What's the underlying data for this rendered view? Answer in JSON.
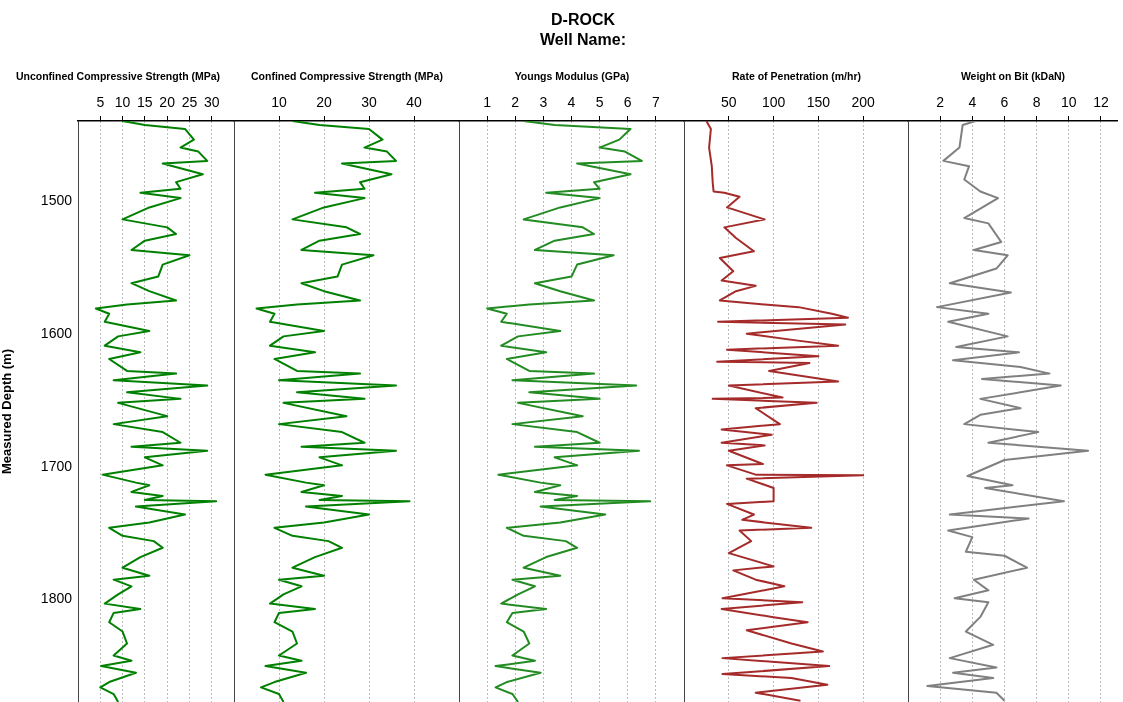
{
  "chart_data": [
    {
      "type": "other",
      "title": "D-ROCK",
      "subtitle": "Well Name:"
    },
    {
      "type": "line",
      "xlabel": "Unconfined Compressive Strength (MPa)",
      "ylabel": "Measured Depth (m)",
      "xlim": [
        0,
        35
      ],
      "xticks": [
        5,
        10,
        15,
        20,
        25,
        30
      ],
      "ylim": [
        1877,
        1440
      ],
      "yticks": [
        1500,
        1600,
        1700,
        1800
      ],
      "grid": "x",
      "series": [
        {
          "color": "#008000",
          "x": [
            10,
            15,
            24,
            26,
            23,
            27,
            29,
            19,
            28,
            22,
            23,
            14,
            23,
            16,
            10,
            20,
            22,
            15,
            12,
            25,
            19,
            18,
            12,
            16,
            22,
            11,
            4,
            7,
            6,
            16,
            9,
            6,
            14,
            7,
            11,
            22,
            8,
            29,
            11,
            23,
            9,
            20,
            8,
            19,
            23,
            12,
            29,
            15,
            19,
            5.5,
            13,
            16,
            12,
            19,
            15,
            31,
            13,
            24,
            16,
            7,
            10,
            17,
            19,
            14,
            10,
            16,
            8,
            12,
            9,
            6,
            14,
            8,
            7,
            10,
            11,
            8,
            12,
            5.2,
            13,
            7,
            5,
            8,
            9
          ],
          "values": [
            1440,
            1443,
            1446,
            1454,
            1460,
            1463,
            1470,
            1472,
            1480,
            1486,
            1491,
            1494,
            1498,
            1505,
            1514,
            1520,
            1525,
            1530,
            1537,
            1541,
            1548,
            1557,
            1562,
            1568,
            1575,
            1578,
            1581,
            1585,
            1591,
            1598,
            1602,
            1609,
            1614,
            1619,
            1628,
            1630,
            1635,
            1639,
            1644,
            1649,
            1652,
            1662,
            1668,
            1674,
            1682,
            1685,
            1688,
            1693,
            1699,
            1706,
            1712,
            1714,
            1719,
            1722,
            1725,
            1726,
            1730,
            1736,
            1742,
            1746,
            1752,
            1756,
            1761,
            1768,
            1776,
            1782,
            1785,
            1790,
            1796,
            1803,
            1807,
            1810,
            1817,
            1824,
            1833,
            1842,
            1846,
            1850,
            1855,
            1862,
            1866,
            1871,
            1877
          ]
        }
      ]
    },
    {
      "type": "line",
      "xlabel": "Confined Compressive Strength (MPa)",
      "xlim": [
        0,
        50
      ],
      "xticks": [
        10,
        20,
        30,
        40
      ],
      "ylim": [
        1877,
        1440
      ],
      "grid": "x",
      "tick_labels": "x",
      "series": [
        {
          "color": "#008000",
          "x": [
            13,
            19,
            30,
            33,
            29,
            34,
            36,
            24,
            35,
            28,
            29,
            18,
            29,
            20,
            13,
            25,
            28,
            19,
            15,
            31,
            24,
            23,
            15,
            20,
            28,
            14,
            5,
            9,
            8,
            20,
            11,
            8,
            18,
            9,
            14,
            28,
            10,
            36,
            14,
            29,
            11,
            25,
            10,
            24,
            29,
            15,
            36,
            19,
            24,
            7,
            16,
            20,
            15,
            24,
            19,
            39,
            16,
            30,
            20,
            9,
            13,
            21,
            24,
            18,
            13,
            20,
            10,
            15,
            11,
            8,
            18,
            10,
            9,
            13,
            14,
            10,
            15,
            7,
            16,
            9,
            6,
            10,
            11
          ],
          "values": [
            1440,
            1443,
            1446,
            1454,
            1460,
            1463,
            1470,
            1472,
            1480,
            1486,
            1491,
            1494,
            1498,
            1505,
            1514,
            1520,
            1525,
            1530,
            1537,
            1541,
            1548,
            1557,
            1562,
            1568,
            1575,
            1578,
            1581,
            1585,
            1591,
            1598,
            1602,
            1609,
            1614,
            1619,
            1628,
            1630,
            1635,
            1639,
            1644,
            1649,
            1652,
            1662,
            1668,
            1674,
            1682,
            1685,
            1688,
            1693,
            1699,
            1706,
            1712,
            1714,
            1719,
            1722,
            1725,
            1726,
            1730,
            1736,
            1742,
            1746,
            1752,
            1756,
            1761,
            1768,
            1776,
            1782,
            1785,
            1790,
            1796,
            1803,
            1807,
            1810,
            1817,
            1824,
            1833,
            1842,
            1846,
            1850,
            1855,
            1862,
            1866,
            1871,
            1877
          ]
        }
      ]
    },
    {
      "type": "line",
      "xlabel": "Youngs Modulus (GPa)",
      "xlim": [
        0,
        8
      ],
      "xticks": [
        1,
        2,
        3,
        4,
        5,
        6,
        7
      ],
      "ylim": [
        1877,
        1440
      ],
      "grid": "x",
      "tick_labels": "x",
      "series": [
        {
          "color": "#228b22",
          "x": [
            2.3,
            3.4,
            6.1,
            5.7,
            5.0,
            5.9,
            6.5,
            4.2,
            6.1,
            4.8,
            5.0,
            3.1,
            5.0,
            3.6,
            2.3,
            4.4,
            4.8,
            3.4,
            2.7,
            5.5,
            4.2,
            4.0,
            2.7,
            3.6,
            4.8,
            2.5,
            1.0,
            1.7,
            1.5,
            3.6,
            2.1,
            1.5,
            3.1,
            1.7,
            2.5,
            4.8,
            1.9,
            6.3,
            2.5,
            5.0,
            2.1,
            4.4,
            1.9,
            4.2,
            5.0,
            2.7,
            6.4,
            3.4,
            4.2,
            1.4,
            2.9,
            3.6,
            2.7,
            4.2,
            3.4,
            6.8,
            2.9,
            5.2,
            3.6,
            1.7,
            2.3,
            3.8,
            4.2,
            3.1,
            2.3,
            3.6,
            1.9,
            2.7,
            2.1,
            1.5,
            3.1,
            1.9,
            1.7,
            2.3,
            2.5,
            1.9,
            2.7,
            1.3,
            2.9,
            1.7,
            1.3,
            1.9,
            2.1
          ],
          "values": [
            1440,
            1443,
            1446,
            1454,
            1460,
            1463,
            1470,
            1472,
            1480,
            1486,
            1491,
            1494,
            1498,
            1505,
            1514,
            1520,
            1525,
            1530,
            1537,
            1541,
            1548,
            1557,
            1562,
            1568,
            1575,
            1578,
            1581,
            1585,
            1591,
            1598,
            1602,
            1609,
            1614,
            1619,
            1628,
            1630,
            1635,
            1639,
            1644,
            1649,
            1652,
            1662,
            1668,
            1674,
            1682,
            1685,
            1688,
            1693,
            1699,
            1706,
            1712,
            1714,
            1719,
            1722,
            1725,
            1726,
            1730,
            1736,
            1742,
            1746,
            1752,
            1756,
            1761,
            1768,
            1776,
            1782,
            1785,
            1790,
            1796,
            1803,
            1807,
            1810,
            1817,
            1824,
            1833,
            1842,
            1846,
            1850,
            1855,
            1862,
            1866,
            1871,
            1877
          ]
        }
      ]
    },
    {
      "type": "line",
      "xlabel": "Rate of Penetration (m/hr)",
      "xlim": [
        0,
        250
      ],
      "xticks": [
        50,
        100,
        150,
        200
      ],
      "ylim": [
        1877,
        1440
      ],
      "grid": "x",
      "tick_labels": "x",
      "series": [
        {
          "color": "#a52a2a",
          "x": [
            25,
            30,
            28,
            31,
            32,
            33,
            45,
            62,
            48,
            90,
            45,
            58,
            78,
            40,
            55,
            42,
            80,
            58,
            40,
            90,
            128,
            165,
            183,
            38,
            180,
            70,
            125,
            172,
            48,
            150,
            37,
            140,
            95,
            172,
            50,
            110,
            32,
            148,
            80,
            107,
            42,
            98,
            42,
            90,
            50,
            88,
            48,
            80,
            200,
            70,
            100,
            100,
            48,
            78,
            65,
            142,
            62,
            75,
            50,
            100,
            55,
            80,
            112,
            43,
            132,
            42,
            98,
            138,
            70,
            120,
            155,
            43,
            162,
            43,
            120,
            160,
            80,
            130
          ],
          "values": [
            1440,
            1446,
            1460,
            1474,
            1486,
            1493,
            1494,
            1497,
            1505,
            1514,
            1520,
            1528,
            1538,
            1543,
            1553,
            1560,
            1564,
            1568,
            1575,
            1578,
            1580,
            1585,
            1588,
            1591,
            1593,
            1600,
            1605,
            1609,
            1612,
            1617,
            1621,
            1622,
            1628,
            1636,
            1639,
            1648,
            1649,
            1652,
            1656,
            1668,
            1672,
            1676,
            1682,
            1684,
            1688,
            1698,
            1699,
            1706,
            1706.5,
            1709,
            1716,
            1726,
            1728,
            1736,
            1740,
            1746,
            1748,
            1756,
            1765,
            1775,
            1778,
            1785,
            1790,
            1799,
            1802,
            1807,
            1813,
            1817,
            1823,
            1833,
            1839,
            1844,
            1850,
            1856,
            1859,
            1864,
            1870,
            1876
          ]
        }
      ]
    },
    {
      "type": "line",
      "xlabel": "Weight on Bit (kDaN)",
      "xlim": [
        0,
        13
      ],
      "xticks": [
        2,
        4,
        6,
        8,
        10,
        12
      ],
      "ylim": [
        1877,
        1440
      ],
      "grid": "x",
      "tick_labels": "x",
      "series": [
        {
          "color": "#808080",
          "x": [
            4.2,
            3.4,
            3.2,
            2.2,
            3.8,
            3.5,
            4.5,
            5.6,
            3.5,
            5.0,
            5.8,
            4.1,
            6.2,
            5.5,
            2.6,
            6.4,
            1.8,
            5.0,
            2.5,
            6.2,
            3.0,
            6.9,
            2.8,
            7.0,
            8.8,
            4.6,
            9.5,
            4.5,
            7.0,
            4.5,
            3.5,
            8.1,
            5.0,
            11.2,
            6.0,
            3.7,
            6.5,
            4.8,
            9.7,
            2.6,
            7.5,
            2.5,
            4.0,
            3.6,
            6.0,
            7.4,
            4.1,
            5.0,
            2.9,
            5.0,
            4.5,
            3.6,
            5.3,
            2.6,
            5.5,
            2.8,
            5.3,
            1.2,
            5.5,
            6.0
          ],
          "values": [
            1440,
            1443,
            1460,
            1470,
            1474,
            1484,
            1493,
            1498,
            1513,
            1517,
            1531,
            1537,
            1541,
            1551,
            1562,
            1569,
            1580,
            1585,
            1591,
            1602,
            1610,
            1614,
            1620,
            1625,
            1630,
            1634,
            1639,
            1649,
            1656,
            1661,
            1668,
            1674,
            1682,
            1688,
            1695,
            1707,
            1714,
            1716,
            1726,
            1736,
            1739,
            1748,
            1753,
            1764,
            1767,
            1776,
            1785,
            1793,
            1799,
            1802,
            1813,
            1824,
            1834,
            1844,
            1851,
            1855,
            1859,
            1865,
            1870,
            1876
          ]
        }
      ]
    }
  ]
}
